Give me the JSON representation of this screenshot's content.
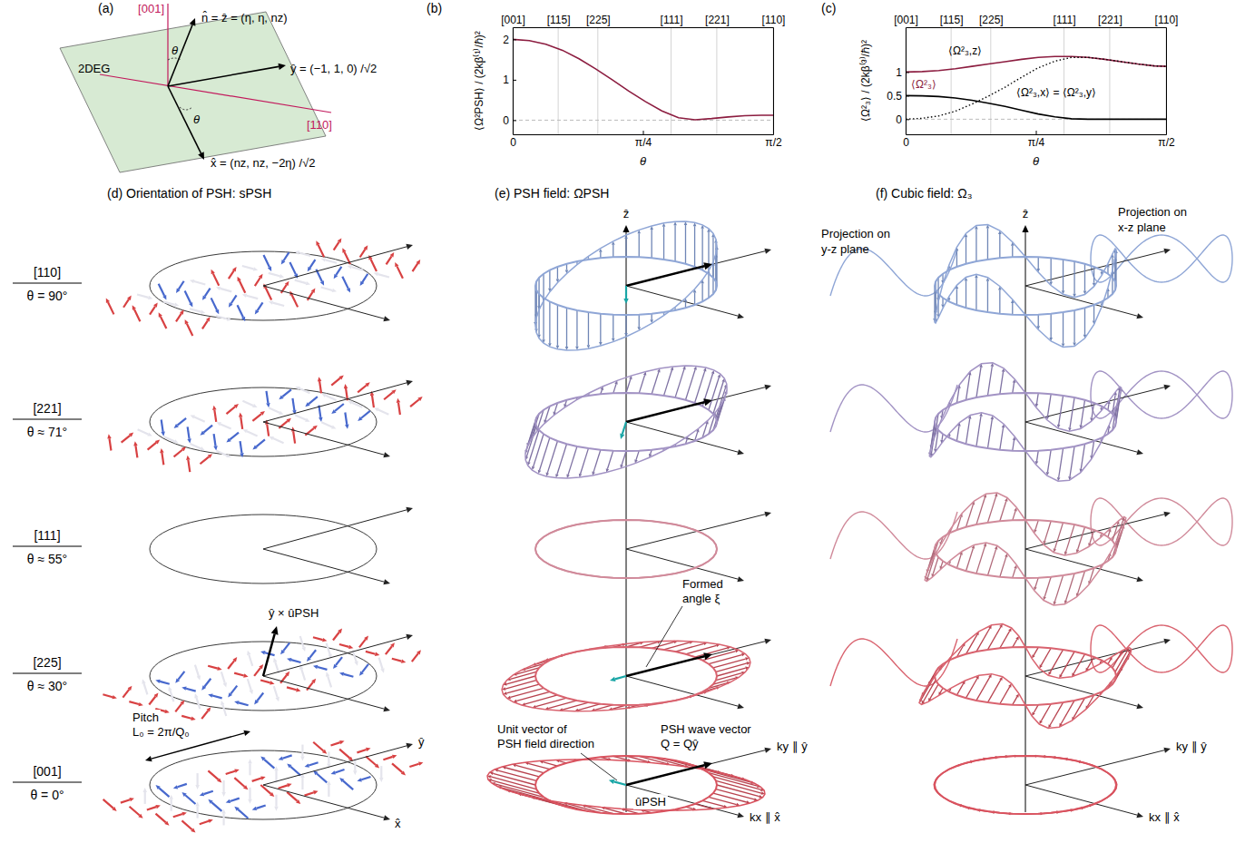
{
  "chart_data": [
    {
      "type": "line",
      "title": "(b)",
      "xlabel": "θ",
      "ylabel": "⟨Ω²PSH⟩ / (2kβ⁽¹⁾/ℏ)²",
      "x": [
        0,
        0.1,
        0.2,
        0.3,
        0.4,
        0.5,
        0.6,
        0.7,
        0.8,
        0.9,
        1.0,
        1.1,
        1.2,
        1.3,
        1.4,
        1.5,
        1.5708
      ],
      "xlim": [
        0,
        1.5708
      ],
      "xticks": [
        0,
        {
          "value": 0.7854,
          "label": "π/4"
        },
        {
          "value": 1.5708,
          "label": "π/2"
        }
      ],
      "x2ticks": [
        {
          "value": 0,
          "label": "[001]"
        },
        {
          "value": 0.2744,
          "label": "[115]"
        },
        {
          "value": 0.5135,
          "label": "[225]"
        },
        {
          "value": 0.9553,
          "label": "[111]"
        },
        {
          "value": 1.231,
          "label": "[221]"
        },
        {
          "value": 1.5708,
          "label": "[110]"
        }
      ],
      "ylim": [
        -0.35,
        2.3
      ],
      "yticks": [
        0,
        1,
        2
      ],
      "grid": true,
      "series": [
        {
          "color": "#8c1d40",
          "values": [
            2.0,
            1.97,
            1.88,
            1.73,
            1.52,
            1.27,
            1.0,
            0.72,
            0.46,
            0.23,
            0.06,
            0.01,
            0.04,
            0.08,
            0.11,
            0.12,
            0.12
          ]
        }
      ]
    },
    {
      "type": "line",
      "title": "(c)",
      "xlabel": "θ",
      "ylabel": "⟨Ω²₃⟩ / (2kβ⁽³⁾/ℏ)²",
      "x": [
        0,
        0.1,
        0.2,
        0.3,
        0.4,
        0.5,
        0.6,
        0.7,
        0.8,
        0.9,
        1.0,
        1.1,
        1.2,
        1.3,
        1.4,
        1.5,
        1.5708
      ],
      "xlim": [
        0,
        1.5708
      ],
      "xticks": [
        0,
        {
          "value": 0.7854,
          "label": "π/4"
        },
        {
          "value": 1.5708,
          "label": "π/2"
        }
      ],
      "x2ticks": [
        {
          "value": 0,
          "label": "[001]"
        },
        {
          "value": 0.2744,
          "label": "[115]"
        },
        {
          "value": 0.5135,
          "label": "[225]"
        },
        {
          "value": 0.9553,
          "label": "[111]"
        },
        {
          "value": 1.231,
          "label": "[221]"
        },
        {
          "value": 1.5708,
          "label": "[110]"
        }
      ],
      "ylim": [
        -0.32,
        1.95
      ],
      "yticks": [
        0,
        0.5,
        1
      ],
      "grid": true,
      "series": [
        {
          "name": "⟨Ω²₃⟩",
          "color": "#8c1d40",
          "line_style": "solid",
          "values": [
            1.0,
            1.01,
            1.03,
            1.07,
            1.12,
            1.17,
            1.22,
            1.27,
            1.31,
            1.33,
            1.33,
            1.31,
            1.27,
            1.22,
            1.17,
            1.13,
            1.12
          ]
        },
        {
          "name": "⟨Ω²₃,z⟩",
          "color": "#000000",
          "line_style": "dotted",
          "values": [
            0,
            0.02,
            0.07,
            0.17,
            0.32,
            0.49,
            0.68,
            0.89,
            1.09,
            1.23,
            1.31,
            1.31,
            1.27,
            1.22,
            1.17,
            1.13,
            1.12
          ]
        },
        {
          "name": "⟨Ω²₃,x⟩ = ⟨Ω²₃,y⟩",
          "color": "#000000",
          "line_style": "solid",
          "values": [
            0.5,
            0.495,
            0.48,
            0.45,
            0.4,
            0.34,
            0.27,
            0.19,
            0.11,
            0.05,
            0.01,
            0,
            0,
            0,
            0,
            0,
            0
          ]
        }
      ]
    }
  ],
  "figure": {
    "panel_a": {
      "label": "(a)",
      "axis_001": "[001]",
      "axis_110": "[110]",
      "plane": "2DEG",
      "theta": "θ",
      "n_vector": "n̂ = ẑ = (η, η, nz)",
      "y_vector": "ŷ = (−1, 1, 0) /√2",
      "x_vector": "x̂ = (nz, nz, −2η) /√2"
    },
    "panel_d": {
      "title": "(d) Orientation of PSH: sPSH",
      "rows": [
        {
          "direction": "[110]",
          "angle": "θ = 90°"
        },
        {
          "direction": "[221]",
          "angle": "θ ≈ 71°"
        },
        {
          "direction": "[111]",
          "angle": "θ ≈ 55°"
        },
        {
          "direction": "[225]",
          "angle": "θ ≈ 30°"
        },
        {
          "direction": "[001]",
          "angle": "θ = 0°"
        }
      ],
      "normal_label": "ŷ × ûPSH",
      "pitch": "Pitch",
      "pitch_formula": "L₀ = 2π/Q₀",
      "y_axis": "ŷ",
      "x_axis": "x̂"
    },
    "panel_e": {
      "title": "(e) PSH field: ΩPSH",
      "z_axis": "ẑ",
      "angle_label": [
        "Formed",
        "angle ξ"
      ],
      "unit_vector_label": [
        "Unit vector of",
        "PSH field direction"
      ],
      "unit_vector": "ûPSH",
      "wave_vector_label": "PSH wave vector",
      "wave_vector": "Q = Qŷ",
      "ky_axis": "ky ∥ ŷ",
      "kx_axis": "kx ∥ x̂"
    },
    "panel_f": {
      "title": "(f) Cubic field: Ω₃",
      "z_axis": "ẑ",
      "projection_yz": [
        "Projection on",
        "y-z plane"
      ],
      "projection_xz": [
        "Projection on",
        "x-z plane"
      ],
      "ky_axis": "ky ∥ ŷ",
      "kx_axis": "kx ∥ x̂"
    }
  }
}
